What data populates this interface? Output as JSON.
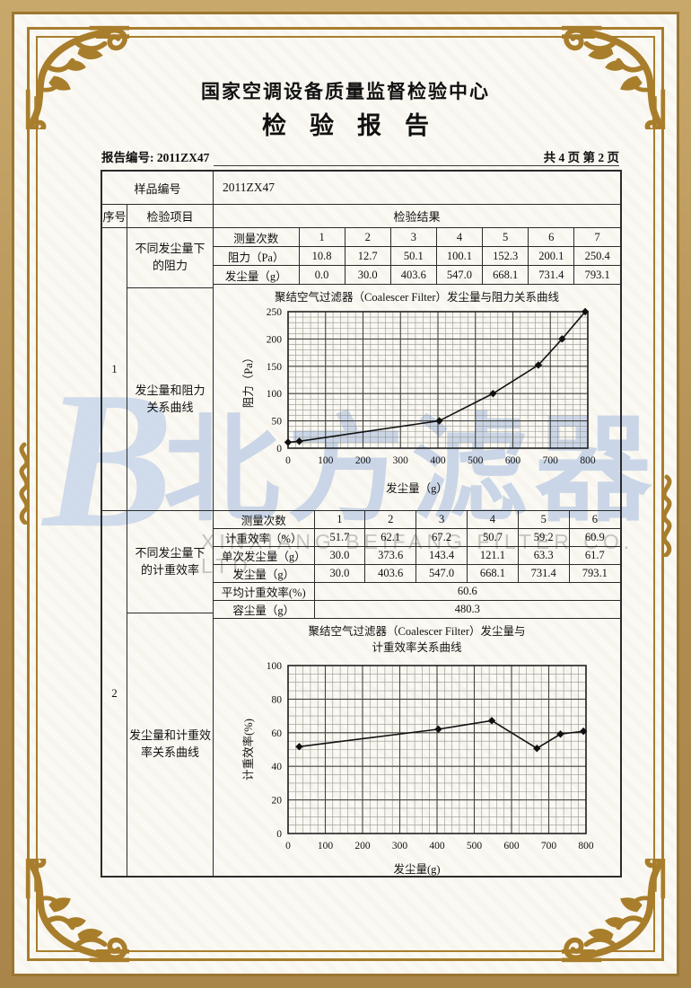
{
  "header": {
    "center_name": "国家空调设备质量监督检验中心",
    "report_title": "检验报告",
    "report_no_label": "报告编号:",
    "report_no_value": "2011ZX47",
    "page_info": "共 4 页 第 2 页"
  },
  "sample": {
    "label": "样品编号",
    "value": "2011ZX47"
  },
  "table_headers": {
    "seq": "序号",
    "item": "检验项目",
    "result": "检验结果"
  },
  "section1": {
    "seq": "1",
    "item_top": [
      "不同发尘量下",
      "的阻力"
    ],
    "item_bottom": [
      "发尘量和阻力",
      "关系曲线"
    ],
    "rows": [
      [
        "测量次数",
        "1",
        "2",
        "3",
        "4",
        "5",
        "6",
        "7"
      ],
      [
        "阻力（Pa）",
        "10.8",
        "12.7",
        "50.1",
        "100.1",
        "152.3",
        "200.1",
        "250.4"
      ],
      [
        "发尘量（g）",
        "0.0",
        "30.0",
        "403.6",
        "547.0",
        "668.1",
        "731.4",
        "793.1"
      ]
    ]
  },
  "section2": {
    "seq": "2",
    "item_top": [
      "不同发尘量下",
      "的计重效率"
    ],
    "item_bottom": [
      "发尘量和计重效",
      "率关系曲线"
    ],
    "rows": [
      [
        "测量次数",
        "1",
        "2",
        "3",
        "4",
        "5",
        "6"
      ],
      [
        "计重效率（%）",
        "51.7",
        "62.1",
        "67.2",
        "50.7",
        "59.2",
        "60.9"
      ],
      [
        "单次发尘量（g）",
        "30.0",
        "373.6",
        "143.4",
        "121.1",
        "63.3",
        "61.7"
      ],
      [
        "发尘量（g）",
        "30.0",
        "403.6",
        "547.0",
        "668.1",
        "731.4",
        "793.1"
      ]
    ],
    "avg_label": "平均计重效率(%)",
    "avg_value": "60.6",
    "cap_label": "容尘量（g）",
    "cap_value": "480.3"
  },
  "chart_data": [
    {
      "type": "line",
      "title_lines": [
        "聚结空气过滤器（Coalescer Filter）发尘量与阻力关系曲线"
      ],
      "xlabel": "发尘量（g）",
      "ylabel": "阻力（Pa）",
      "xlim": [
        0,
        800
      ],
      "ylim": [
        0,
        250
      ],
      "xtick_step": 100,
      "ytick_step": 50,
      "x_minor": 20,
      "y_minor": 10,
      "grid": true,
      "legend": false,
      "x": [
        0,
        30,
        403.6,
        547.0,
        668.1,
        731.4,
        793.1
      ],
      "y": [
        10.8,
        12.7,
        50.1,
        100.1,
        152.3,
        200.1,
        250.4
      ]
    },
    {
      "type": "line",
      "title_lines": [
        "聚结空气过滤器（Coalescer Filter）发尘量与",
        "计重效率关系曲线"
      ],
      "xlabel": "发尘量(g)",
      "ylabel": "计重效率(%)",
      "xlim": [
        0,
        800
      ],
      "ylim": [
        0,
        100
      ],
      "xtick_step": 100,
      "ytick_step": 20,
      "x_minor": 20,
      "y_minor": 5,
      "grid": true,
      "legend": false,
      "x": [
        30,
        403.6,
        547.0,
        668.1,
        731.4,
        793.1
      ],
      "y": [
        51.7,
        62.1,
        67.2,
        50.7,
        59.2,
        60.9
      ]
    }
  ],
  "watermark": {
    "logo_letter": "B",
    "text": "北方滤器",
    "subtext": "XINXIANG BEIFANG FILTER CO. LTD.",
    "color": "#c2d1e6"
  },
  "colors": {
    "frame_gold": "#a87e2c",
    "band_tan": "#b6945f",
    "paper": "#fbf9f3",
    "table_line": "#2b2b2b",
    "watermark_blue": "#c2d1e6"
  }
}
